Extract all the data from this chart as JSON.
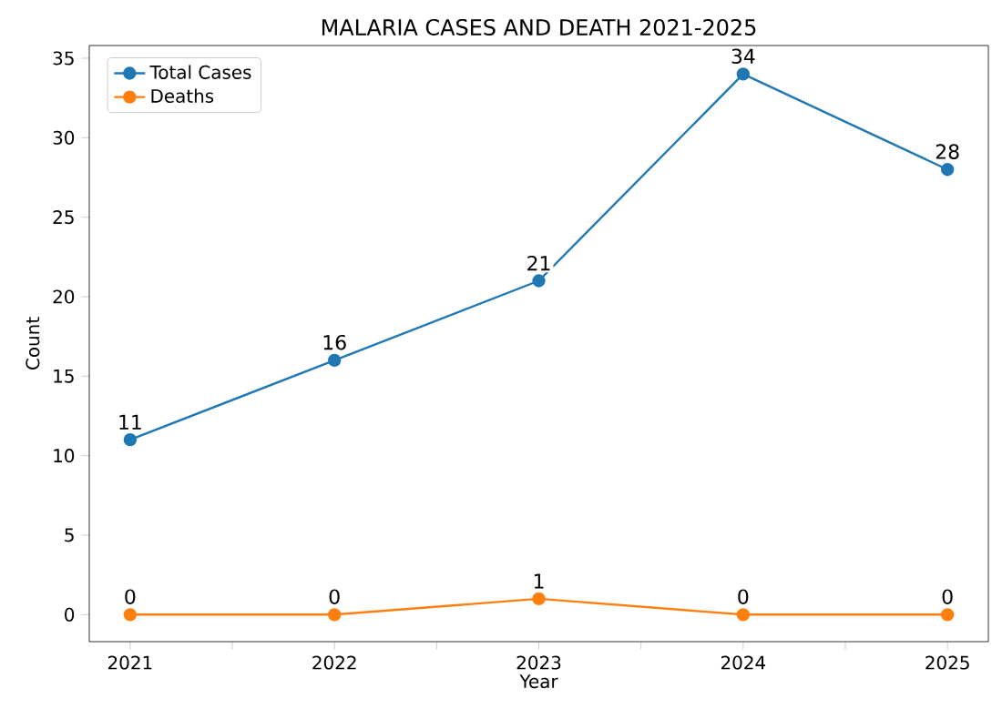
{
  "chart_data": {
    "type": "line",
    "title": "MALARIA CASES AND DEATH      2021-2025",
    "xlabel": "Year",
    "ylabel": "Count",
    "x": [
      2021,
      2022,
      2023,
      2024,
      2025
    ],
    "series": [
      {
        "name": "Total Cases",
        "color": "#1f77b4",
        "values": [
          11,
          16,
          21,
          34,
          28
        ]
      },
      {
        "name": "Deaths",
        "color": "#ff7f0e",
        "values": [
          0,
          0,
          1,
          0,
          0
        ]
      }
    ],
    "xlim": [
      2020.8,
      2025.2
    ],
    "ylim": [
      -1.7,
      35.8
    ],
    "xticks": [
      2021,
      {
        "value": 2021.5,
        "label": null
      },
      2022,
      {
        "value": 2022.5,
        "label": null
      },
      2023,
      {
        "value": 2023.5,
        "label": null
      },
      2024,
      {
        "value": 2024.5,
        "label": null
      },
      2025
    ],
    "yticks": [
      0,
      5,
      10,
      15,
      20,
      25,
      30,
      35
    ],
    "data_labels": true,
    "legend": "top left",
    "marker": "circle",
    "line_style": "solid",
    "grid": false
  }
}
